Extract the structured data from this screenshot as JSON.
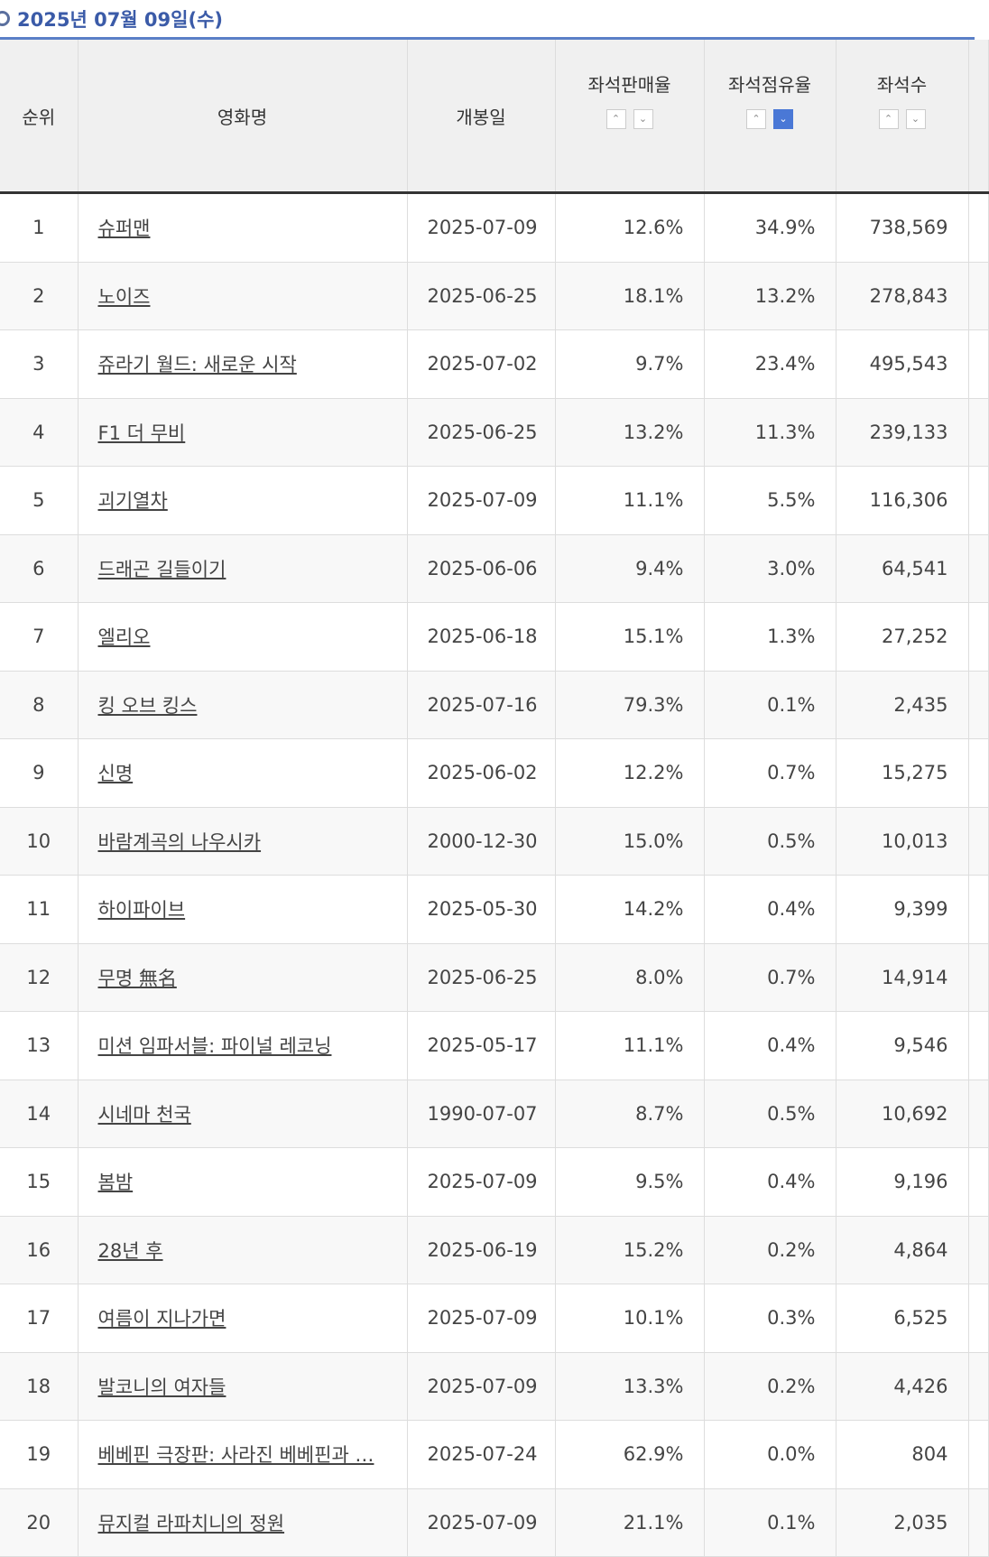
{
  "header": {
    "title": "2025년 07월 09일(수)"
  },
  "table": {
    "columns": [
      "순위",
      "영화명",
      "개봉일",
      "좌석판매율",
      "좌석점유율",
      "좌석수"
    ],
    "rows": [
      [
        "1",
        "슈퍼맨",
        "2025-07-09",
        "12.6%",
        "34.9%",
        "738,569"
      ],
      [
        "2",
        "노이즈",
        "2025-06-25",
        "18.1%",
        "13.2%",
        "278,843"
      ],
      [
        "3",
        "쥬라기 월드: 새로운 시작",
        "2025-07-02",
        "9.7%",
        "23.4%",
        "495,543"
      ],
      [
        "4",
        "F1 더 무비",
        "2025-06-25",
        "13.2%",
        "11.3%",
        "239,133"
      ],
      [
        "5",
        "괴기열차",
        "2025-07-09",
        "11.1%",
        "5.5%",
        "116,306"
      ],
      [
        "6",
        "드래곤 길들이기",
        "2025-06-06",
        "9.4%",
        "3.0%",
        "64,541"
      ],
      [
        "7",
        "엘리오",
        "2025-06-18",
        "15.1%",
        "1.3%",
        "27,252"
      ],
      [
        "8",
        "킹 오브 킹스",
        "2025-07-16",
        "79.3%",
        "0.1%",
        "2,435"
      ],
      [
        "9",
        "신명",
        "2025-06-02",
        "12.2%",
        "0.7%",
        "15,275"
      ],
      [
        "10",
        "바람계곡의 나우시카",
        "2000-12-30",
        "15.0%",
        "0.5%",
        "10,013"
      ],
      [
        "11",
        "하이파이브",
        "2025-05-30",
        "14.2%",
        "0.4%",
        "9,399"
      ],
      [
        "12",
        "무명 無名",
        "2025-06-25",
        "8.0%",
        "0.7%",
        "14,914"
      ],
      [
        "13",
        "미션 임파서블: 파이널 레코닝",
        "2025-05-17",
        "11.1%",
        "0.4%",
        "9,546"
      ],
      [
        "14",
        "시네마 천국",
        "1990-07-07",
        "8.7%",
        "0.5%",
        "10,692"
      ],
      [
        "15",
        "봄밤",
        "2025-07-09",
        "9.5%",
        "0.4%",
        "9,196"
      ],
      [
        "16",
        "28년 후",
        "2025-06-19",
        "15.2%",
        "0.2%",
        "4,864"
      ],
      [
        "17",
        "여름이 지나가면",
        "2025-07-09",
        "10.1%",
        "0.3%",
        "6,525"
      ],
      [
        "18",
        "발코니의 여자들",
        "2025-07-09",
        "13.3%",
        "0.2%",
        "4,426"
      ],
      [
        "19",
        "베베핀 극장판: 사라진 베베핀과 …",
        "2025-07-24",
        "62.9%",
        "0.0%",
        "804"
      ],
      [
        "20",
        "뮤지컬 라파치니의 정원",
        "2025-07-09",
        "21.1%",
        "0.1%",
        "2,035"
      ]
    ]
  }
}
